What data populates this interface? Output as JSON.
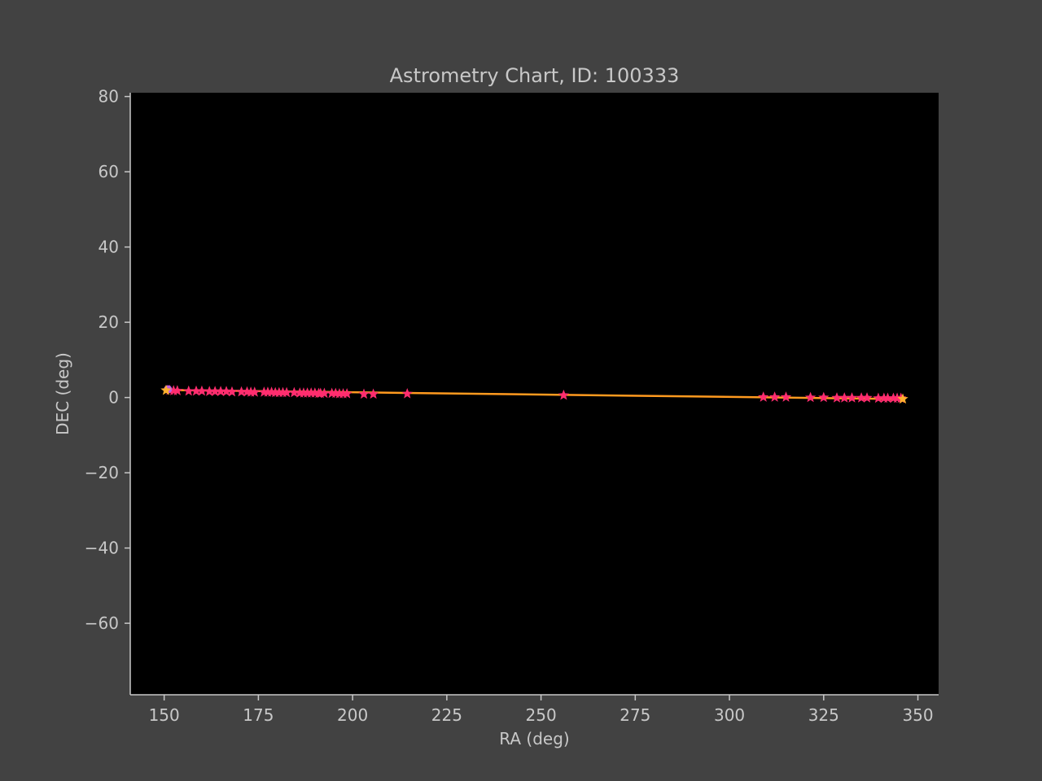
{
  "chart_data": {
    "type": "scatter",
    "title": "Astrometry Chart, ID: 100333",
    "xlabel": "RA (deg)",
    "ylabel": "DEC (deg)",
    "xlim": [
      141,
      355.5
    ],
    "ylim": [
      -79,
      81
    ],
    "x_ticks": [
      150,
      175,
      200,
      225,
      250,
      275,
      300,
      325,
      350
    ],
    "y_ticks": [
      80,
      60,
      40,
      20,
      0,
      -20,
      -40,
      -60
    ],
    "x_tick_labels": [
      "150",
      "175",
      "200",
      "225",
      "250",
      "275",
      "300",
      "325",
      "350"
    ],
    "y_tick_labels": [
      "80",
      "60",
      "40",
      "20",
      "0",
      "−20",
      "−40",
      "−60"
    ],
    "grid": false,
    "plot_background": "#000000",
    "figure_background": "#424242",
    "text_color": "#c8c8c8",
    "series": [
      {
        "marker": "star",
        "color": "#ff2d6e",
        "points": [
          [
            151.5,
            1.9
          ],
          [
            152.5,
            1.8
          ],
          [
            153.5,
            1.8
          ],
          [
            156.5,
            1.7
          ],
          [
            158.5,
            1.7
          ],
          [
            160,
            1.7
          ],
          [
            162,
            1.6
          ],
          [
            163.5,
            1.6
          ],
          [
            165,
            1.6
          ],
          [
            166.5,
            1.6
          ],
          [
            168,
            1.5
          ],
          [
            170.5,
            1.5
          ],
          [
            172,
            1.5
          ],
          [
            173,
            1.4
          ],
          [
            174,
            1.4
          ],
          [
            176.5,
            1.4
          ],
          [
            177.5,
            1.4
          ],
          [
            178.5,
            1.4
          ],
          [
            179.5,
            1.3
          ],
          [
            180.5,
            1.3
          ],
          [
            181.5,
            1.3
          ],
          [
            182.5,
            1.3
          ],
          [
            184.5,
            1.3
          ],
          [
            186,
            1.2
          ],
          [
            187,
            1.2
          ],
          [
            188,
            1.2
          ],
          [
            189,
            1.2
          ],
          [
            190,
            1.2
          ],
          [
            191,
            1.1
          ],
          [
            191.5,
            1.1
          ],
          [
            192.5,
            1.1
          ],
          [
            194.5,
            1.1
          ],
          [
            195.5,
            1.1
          ],
          [
            196.5,
            1.0
          ],
          [
            197.5,
            1.0
          ],
          [
            198.5,
            1.0
          ],
          [
            203,
            0.9
          ],
          [
            205.5,
            0.9
          ],
          [
            214.5,
            1.0
          ],
          [
            256,
            0.6
          ],
          [
            309,
            0.1
          ],
          [
            312,
            0.1
          ],
          [
            315,
            0.1
          ],
          [
            321.5,
            0.0
          ],
          [
            325,
            0.0
          ],
          [
            328.5,
            -0.1
          ],
          [
            330.5,
            -0.1
          ],
          [
            332.5,
            -0.1
          ],
          [
            335,
            -0.1
          ],
          [
            336.5,
            -0.1
          ],
          [
            339.5,
            -0.2
          ],
          [
            341,
            -0.2
          ],
          [
            342,
            -0.2
          ],
          [
            343.5,
            -0.2
          ],
          [
            344.5,
            -0.2
          ],
          [
            345.5,
            -0.2
          ]
        ]
      },
      {
        "marker": "circle",
        "color": "#c060e0",
        "points": [
          [
            151,
            2.2
          ]
        ]
      },
      {
        "marker": "line",
        "color": "#ff9a1f",
        "points": [
          [
            150.5,
            2.0
          ],
          [
            346,
            -0.4
          ]
        ]
      },
      {
        "marker": "star",
        "color": "#ffb02e",
        "points": [
          [
            150.5,
            1.9
          ],
          [
            346,
            -0.4
          ]
        ]
      }
    ]
  }
}
